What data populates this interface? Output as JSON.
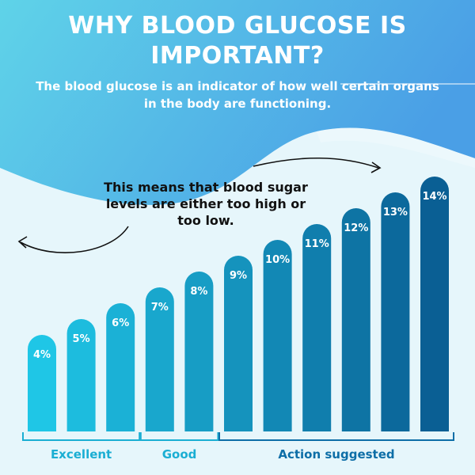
{
  "title": "WHY BLOOD GLUCOSE IS IMPORTANT?",
  "subtitle": "The blood glucose is an indicator of how well certain organs in the body are functioning.",
  "annotation": "This means that blood sugar levels are either too high or too low.",
  "colors": {
    "background": "#e6f6fb",
    "wave_light": "#5fd3e8",
    "wave_dark": "#4a9fe6",
    "bar_light": "#1fc6e6",
    "bar_dark": "#0a5f94",
    "group_label": "#1aaed3",
    "group_label_action": "#0d6ea7"
  },
  "chart_data": {
    "type": "bar",
    "categories": [
      "4%",
      "5%",
      "6%",
      "7%",
      "8%",
      "9%",
      "10%",
      "11%",
      "12%",
      "13%",
      "14%"
    ],
    "values": [
      4,
      5,
      6,
      7,
      8,
      9,
      10,
      11,
      12,
      13,
      14
    ],
    "data_labels": [
      "4%",
      "5%",
      "6%",
      "7%",
      "8%",
      "9%",
      "10%",
      "11%",
      "12%",
      "13%",
      "14%"
    ],
    "groups": [
      {
        "label": "Excellent",
        "from": 0,
        "to": 2
      },
      {
        "label": "Good",
        "from": 3,
        "to": 4
      },
      {
        "label": "Action suggested",
        "from": 5,
        "to": 10
      }
    ],
    "title": "WHY BLOOD GLUCOSE IS IMPORTANT?",
    "xlabel": "",
    "ylabel": "",
    "grid": false
  }
}
